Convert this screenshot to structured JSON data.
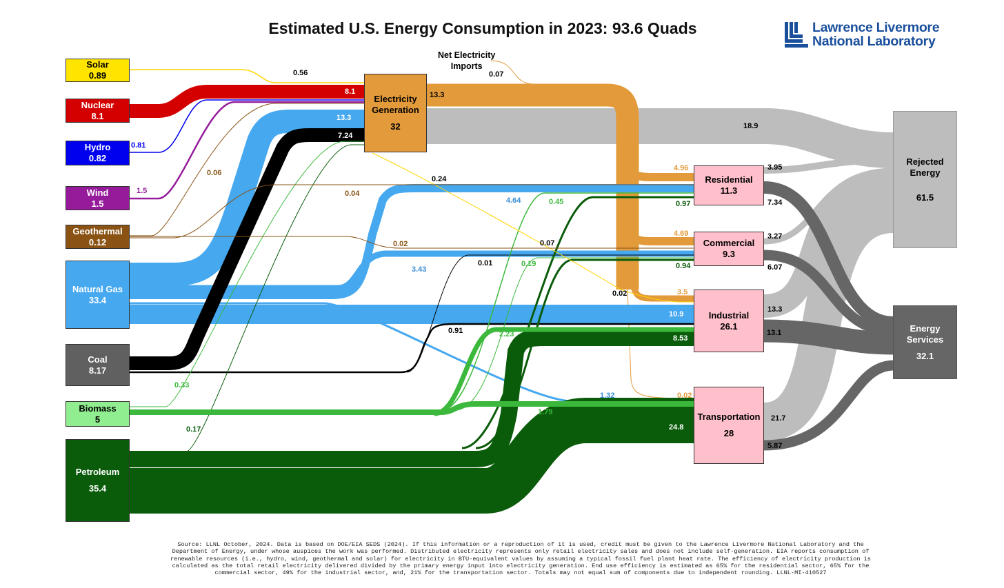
{
  "title": "Estimated U.S. Energy Consumption in 2023: 93.6 Quads",
  "logo": {
    "line1": "Lawrence Livermore",
    "line2": "National Laboratory",
    "color": "#1a4f9c"
  },
  "sources": [
    {
      "name": "Solar",
      "value": "0.89",
      "color": "#ffe400"
    },
    {
      "name": "Nuclear",
      "value": "8.1",
      "color": "#d40000"
    },
    {
      "name": "Hydro",
      "value": "0.82",
      "color": "#0000ee"
    },
    {
      "name": "Wind",
      "value": "1.5",
      "color": "#951b9a"
    },
    {
      "name": "Geothermal",
      "value": "0.12",
      "color": "#8a5314"
    },
    {
      "name": "Natural Gas",
      "value": "33.4",
      "color": "#46a8ef"
    },
    {
      "name": "Coal",
      "value": "8.17",
      "color": "#606060"
    },
    {
      "name": "Biomass",
      "value": "5",
      "color": "#90ee90"
    },
    {
      "name": "Petroleum",
      "value": "35.4",
      "color": "#0a5c0a"
    }
  ],
  "electricity": {
    "name_line1": "Electricity",
    "name_line2": "Generation",
    "value": "32",
    "color": "#e39a3a"
  },
  "net_imports": {
    "line1": "Net Electricity",
    "line2": "Imports",
    "value": "0.07"
  },
  "sectors": [
    {
      "name": "Residential",
      "value": "11.3"
    },
    {
      "name": "Commercial",
      "value": "9.3"
    },
    {
      "name": "Industrial",
      "value": "26.1"
    },
    {
      "name": "Transportation",
      "value": "28"
    }
  ],
  "rejected": {
    "line1": "Rejected",
    "line2": "Energy",
    "value": "61.5"
  },
  "services": {
    "line1": "Energy",
    "line2": "Services",
    "value": "32.1"
  },
  "flow_labels": [
    "0.56",
    "8.1",
    "13.3",
    "7.24",
    "0.81",
    "1.5",
    "0.06",
    "0.04",
    "0.24",
    "13.3",
    "0.07",
    "18.9",
    "4.96",
    "4.64",
    "0.45",
    "0.97",
    "0.02",
    "0.07",
    "4.69",
    "3.43",
    "0.01",
    "0.19",
    "0.94",
    "0.02",
    "3.5",
    "10.9",
    "0.91",
    "2.23",
    "8.53",
    "0.33",
    "1.32",
    "0.02",
    "1.79",
    "0.17",
    "24.8",
    "3.95",
    "7.34",
    "3.27",
    "6.07",
    "13.3",
    "13.1",
    "21.7",
    "5.87"
  ],
  "source_note": [
    "Source: LLNL October, 2024. Data is based on DOE/EIA SEDS (2024). If this information or a reproduction of it is used, credit must be given to the Lawrence Livermore National Laboratory and the",
    "Department of Energy, under whose auspices the work was performed. Distributed electricity represents only retail electricity sales and does not include self-generation.  EIA reports consumption of",
    "renewable resources (i.e., hydro, wind, geothermal and solar) for electricity in BTU-equivalent values by assuming a typical fossil fuel plant heat rate.  The efficiency of electricity production is",
    "calculated as the total retail electricity delivered divided by the primary energy input into electricity generation.  End use efficiency is estimated as 65% for the residential sector, 65% for the",
    "commercial sector, 49% for the industrial sector, and, 21% for the transportation sector. Totals may not equal sum of components due to independent rounding. LLNL-MI-410527"
  ],
  "colors": {
    "solar": "#ffd500",
    "nuclear": "#d40000",
    "hydro": "#0000ee",
    "wind": "#951b9a",
    "geothermal": "#8a5314",
    "gas": "#46a8ef",
    "coal": "#000000",
    "biomass": "#3cb93c",
    "petroleum": "#0a5c0a",
    "electricity": "#e39a3a",
    "rejected": "#bdbdbd",
    "services": "#666666",
    "sector": "#ffc0cb"
  }
}
